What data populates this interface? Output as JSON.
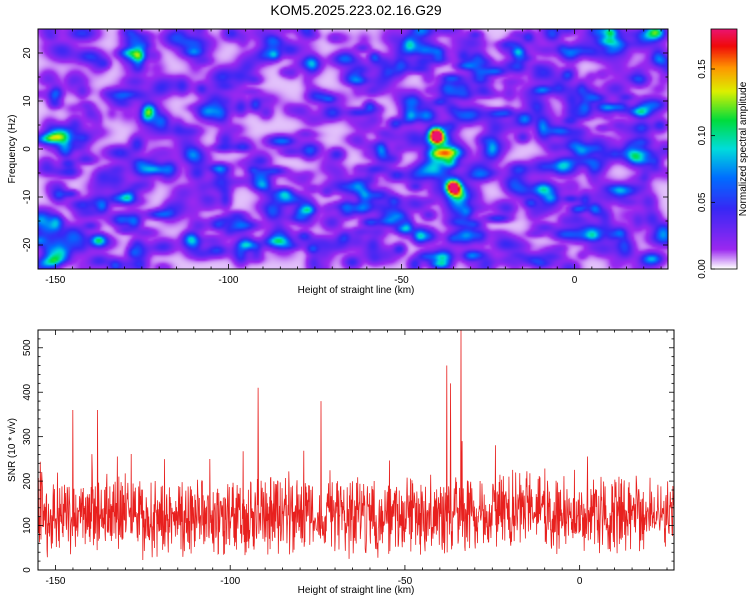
{
  "title": "KOM5.2025.223.02.16.G29",
  "chart_data": [
    {
      "type": "heatmap",
      "xlabel": "Height of straight line (km)",
      "ylabel": "Frequency (Hz)",
      "xlim": [
        -155,
        27
      ],
      "ylim": [
        -25,
        25
      ],
      "xticks": [
        -150,
        -100,
        -50,
        0
      ],
      "yticks": [
        -20,
        -10,
        0,
        10,
        20
      ],
      "colorbar": {
        "label": "Normalized spectral amplitude",
        "range": [
          0.0,
          0.18
        ],
        "ticks": [
          "0.00",
          "0.05",
          "0.10",
          "0.15"
        ]
      },
      "features": {
        "noise_level": 0.04,
        "hot_spots": [
          {
            "x": -40,
            "y": 3,
            "value": 0.18
          },
          {
            "x": -35,
            "y": -8,
            "value": 0.18
          },
          {
            "x": -123,
            "y": 8,
            "value": 0.09
          }
        ]
      }
    },
    {
      "type": "line",
      "xlabel": "Height of straight line (km)",
      "ylabel": "SNR (10 * v/v)",
      "xlim": [
        -155,
        27
      ],
      "ylim": [
        0,
        540
      ],
      "xticks": [
        -150,
        -100,
        -50,
        0
      ],
      "yticks": [
        0,
        100,
        200,
        300,
        400,
        500
      ],
      "series": [
        {
          "name": "SNR",
          "color": "#e8201e",
          "baseline": 125,
          "spread": 75,
          "peaks": [
            {
              "x": -34,
              "y": 540
            },
            {
              "x": -38,
              "y": 460
            },
            {
              "x": -92,
              "y": 410
            },
            {
              "x": -145,
              "y": 360
            },
            {
              "x": -138,
              "y": 360
            },
            {
              "x": -74,
              "y": 380
            },
            {
              "x": -37,
              "y": 420
            }
          ]
        }
      ]
    }
  ]
}
